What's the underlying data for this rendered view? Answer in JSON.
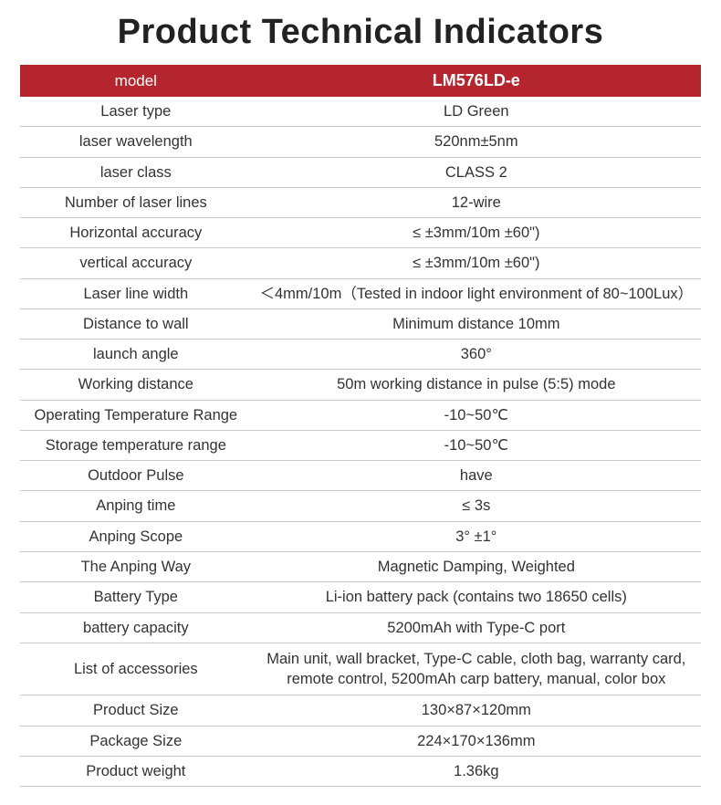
{
  "title": "Product Technical Indicators",
  "header": {
    "label_col": "model",
    "value_col": "LM576LD-e"
  },
  "header_bg": "#b4252d",
  "header_fg": "#ffffff",
  "border_color": "#c9c9c9",
  "rows": [
    {
      "label": "Laser type",
      "value": "LD Green"
    },
    {
      "label": "laser wavelength",
      "value": "520nm±5nm"
    },
    {
      "label": "laser class",
      "value": "CLASS 2"
    },
    {
      "label": "Number of laser lines",
      "value": "12-wire"
    },
    {
      "label": "Horizontal accuracy",
      "value": "≤ ±3mm/10m ±60\")"
    },
    {
      "label": "vertical accuracy",
      "value": "≤ ±3mm/10m ±60\")"
    },
    {
      "label": "Laser line width",
      "value": "＜4mm/10m（Tested in indoor light environment of 80~100Lux）"
    },
    {
      "label": "Distance to wall",
      "value": "Minimum distance 10mm"
    },
    {
      "label": "launch angle",
      "value": "360°"
    },
    {
      "label": "Working distance",
      "value": "50m working distance in pulse (5:5) mode"
    },
    {
      "label": "Operating Temperature Range",
      "value": "-10~50℃"
    },
    {
      "label": "Storage temperature range",
      "value": "-10~50℃"
    },
    {
      "label": "Outdoor Pulse",
      "value": "have"
    },
    {
      "label": "Anping time",
      "value": "≤ 3s"
    },
    {
      "label": "Anping Scope",
      "value": "3° ±1°"
    },
    {
      "label": "The Anping Way",
      "value": "Magnetic Damping, Weighted"
    },
    {
      "label": "Battery Type",
      "value": "Li-ion battery pack (contains two 18650 cells)"
    },
    {
      "label": "battery capacity",
      "value": "5200mAh with Type-C port"
    },
    {
      "label": "List of accessories",
      "value": "Main unit, wall bracket, Type-C cable, cloth bag, warranty card, remote control, 5200mAh carp battery, manual, color box"
    },
    {
      "label": "Product Size",
      "value": "130×87×120mm"
    },
    {
      "label": "Package Size",
      "value": "224×170×136mm"
    },
    {
      "label": "Product weight",
      "value": "1.36kg"
    }
  ]
}
